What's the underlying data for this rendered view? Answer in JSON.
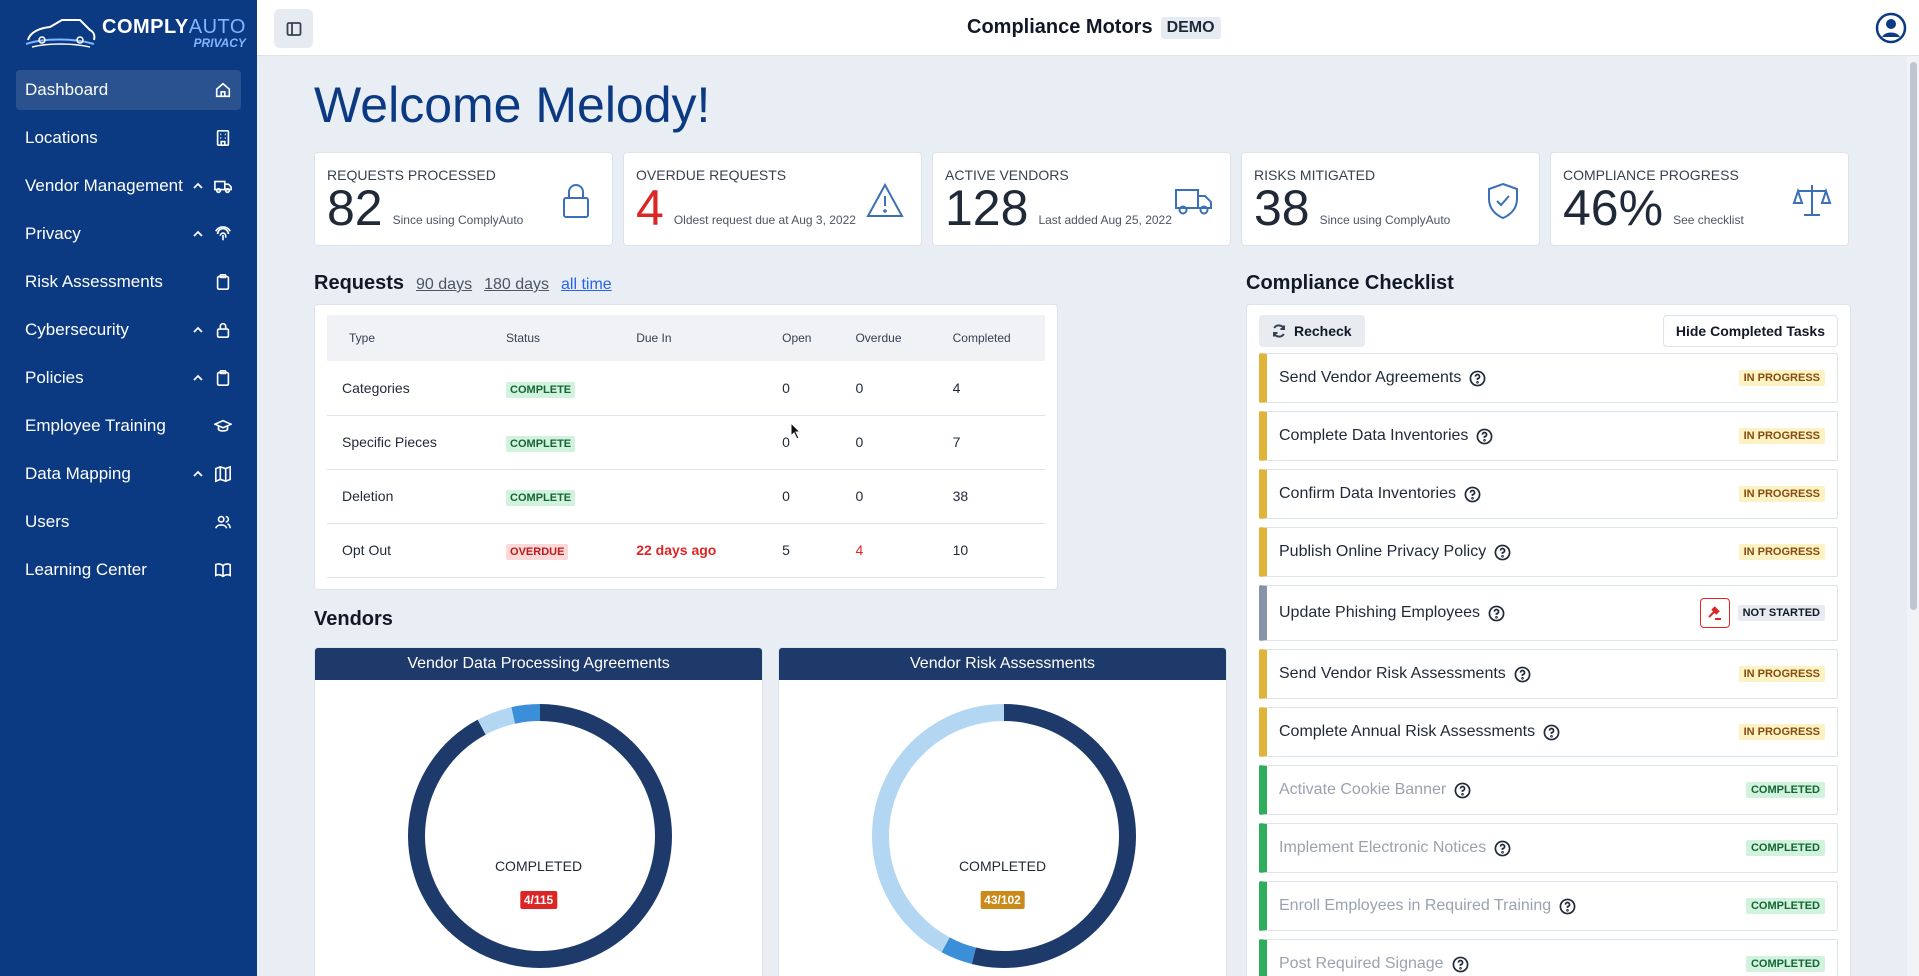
{
  "brand": {
    "name_part1": "COMPLY",
    "name_part2": "AUTO",
    "tagline": "PRIVACY"
  },
  "sidebar": {
    "items": [
      {
        "label": "Dashboard",
        "icon": "home-icon",
        "active": true,
        "expandable": false
      },
      {
        "label": "Locations",
        "icon": "building-icon",
        "expandable": false
      },
      {
        "label": "Vendor Management",
        "icon": "truck-icon",
        "expandable": true
      },
      {
        "label": "Privacy",
        "icon": "fingerprint-icon",
        "expandable": true
      },
      {
        "label": "Risk Assessments",
        "icon": "clipboard-icon",
        "expandable": false
      },
      {
        "label": "Cybersecurity",
        "icon": "lock-icon",
        "expandable": true
      },
      {
        "label": "Policies",
        "icon": "clipboard-icon",
        "expandable": true
      },
      {
        "label": "Employee Training",
        "icon": "graduation-cap-icon",
        "expandable": false
      },
      {
        "label": "Data Mapping",
        "icon": "map-icon",
        "expandable": true
      },
      {
        "label": "Users",
        "icon": "users-icon",
        "expandable": false
      },
      {
        "label": "Learning Center",
        "icon": "book-icon",
        "expandable": false
      }
    ]
  },
  "header": {
    "company": "Compliance Motors",
    "badge": "DEMO"
  },
  "welcome": "Welcome Melody!",
  "stats": [
    {
      "label": "REQUESTS PROCESSED",
      "value": "82",
      "sub": "Since using ComplyAuto",
      "icon": "lock-icon",
      "red": false
    },
    {
      "label": "OVERDUE REQUESTS",
      "value": "4",
      "sub": "Oldest request due at Aug 3, 2022",
      "icon": "warning-icon",
      "red": true
    },
    {
      "label": "ACTIVE VENDORS",
      "value": "128",
      "sub": "Last added Aug 25, 2022",
      "icon": "truck-icon",
      "red": false
    },
    {
      "label": "RISKS MITIGATED",
      "value": "38",
      "sub": "Since using ComplyAuto",
      "icon": "shield-check-icon",
      "red": false
    },
    {
      "label": "COMPLIANCE PROGRESS",
      "value": "46%",
      "sub": "See checklist",
      "icon": "scale-icon",
      "red": false
    }
  ],
  "requests": {
    "title": "Requests",
    "filters": [
      "90 days",
      "180 days",
      "all time"
    ],
    "active_filter": "all time",
    "columns": [
      "Type",
      "Status",
      "Due In",
      "Open",
      "Overdue",
      "Completed"
    ],
    "rows": [
      {
        "type": "Categories",
        "status": "COMPLETE",
        "due": "",
        "open": "0",
        "overdue": "0",
        "completed": "4"
      },
      {
        "type": "Specific Pieces",
        "status": "COMPLETE",
        "due": "",
        "open": "0",
        "overdue": "0",
        "completed": "7"
      },
      {
        "type": "Deletion",
        "status": "COMPLETE",
        "due": "",
        "open": "0",
        "overdue": "0",
        "completed": "38"
      },
      {
        "type": "Opt Out",
        "status": "OVERDUE",
        "due": "22 days ago",
        "open": "5",
        "overdue": "4",
        "completed": "10"
      }
    ]
  },
  "vendors": {
    "title": "Vendors",
    "cards": [
      {
        "title": "Vendor Data Processing Agreements",
        "label": "COMPLETED",
        "badge": "4/115",
        "badge_color": "#dc2626",
        "segments": [
          {
            "value": 106,
            "color": "#1e3a6a"
          },
          {
            "value": 5,
            "color": "#b3d7f2"
          },
          {
            "value": 4,
            "color": "#3b8fd9"
          }
        ]
      },
      {
        "title": "Vendor Risk Assessments",
        "label": "COMPLETED",
        "badge": "43/102",
        "badge_color": "#c98a1a",
        "segments": [
          {
            "value": 55,
            "color": "#1e3a6a"
          },
          {
            "value": 4,
            "color": "#3b8fd9"
          },
          {
            "value": 43,
            "color": "#b3d7f2"
          }
        ]
      }
    ]
  },
  "checklist": {
    "title": "Compliance Checklist",
    "recheck": "Recheck",
    "hide": "Hide Completed Tasks",
    "items": [
      {
        "label": "Send Vendor Agreements",
        "status": "IN PROGRESS",
        "kind": "prog"
      },
      {
        "label": "Complete Data Inventories",
        "status": "IN PROGRESS",
        "kind": "prog"
      },
      {
        "label": "Confirm Data Inventories",
        "status": "IN PROGRESS",
        "kind": "prog"
      },
      {
        "label": "Publish Online Privacy Policy",
        "status": "IN PROGRESS",
        "kind": "prog"
      },
      {
        "label": "Update Phishing Employees",
        "status": "NOT STARTED",
        "kind": "not"
      },
      {
        "label": "Send Vendor Risk Assessments",
        "status": "IN PROGRESS",
        "kind": "prog"
      },
      {
        "label": "Complete Annual Risk Assessments",
        "status": "IN PROGRESS",
        "kind": "prog"
      },
      {
        "label": "Activate Cookie Banner",
        "status": "COMPLETED",
        "kind": "comp"
      },
      {
        "label": "Implement Electronic Notices",
        "status": "COMPLETED",
        "kind": "comp"
      },
      {
        "label": "Enroll Employees in Required Training",
        "status": "COMPLETED",
        "kind": "comp"
      },
      {
        "label": "Post Required Signage",
        "status": "COMPLETED",
        "kind": "comp"
      }
    ]
  }
}
